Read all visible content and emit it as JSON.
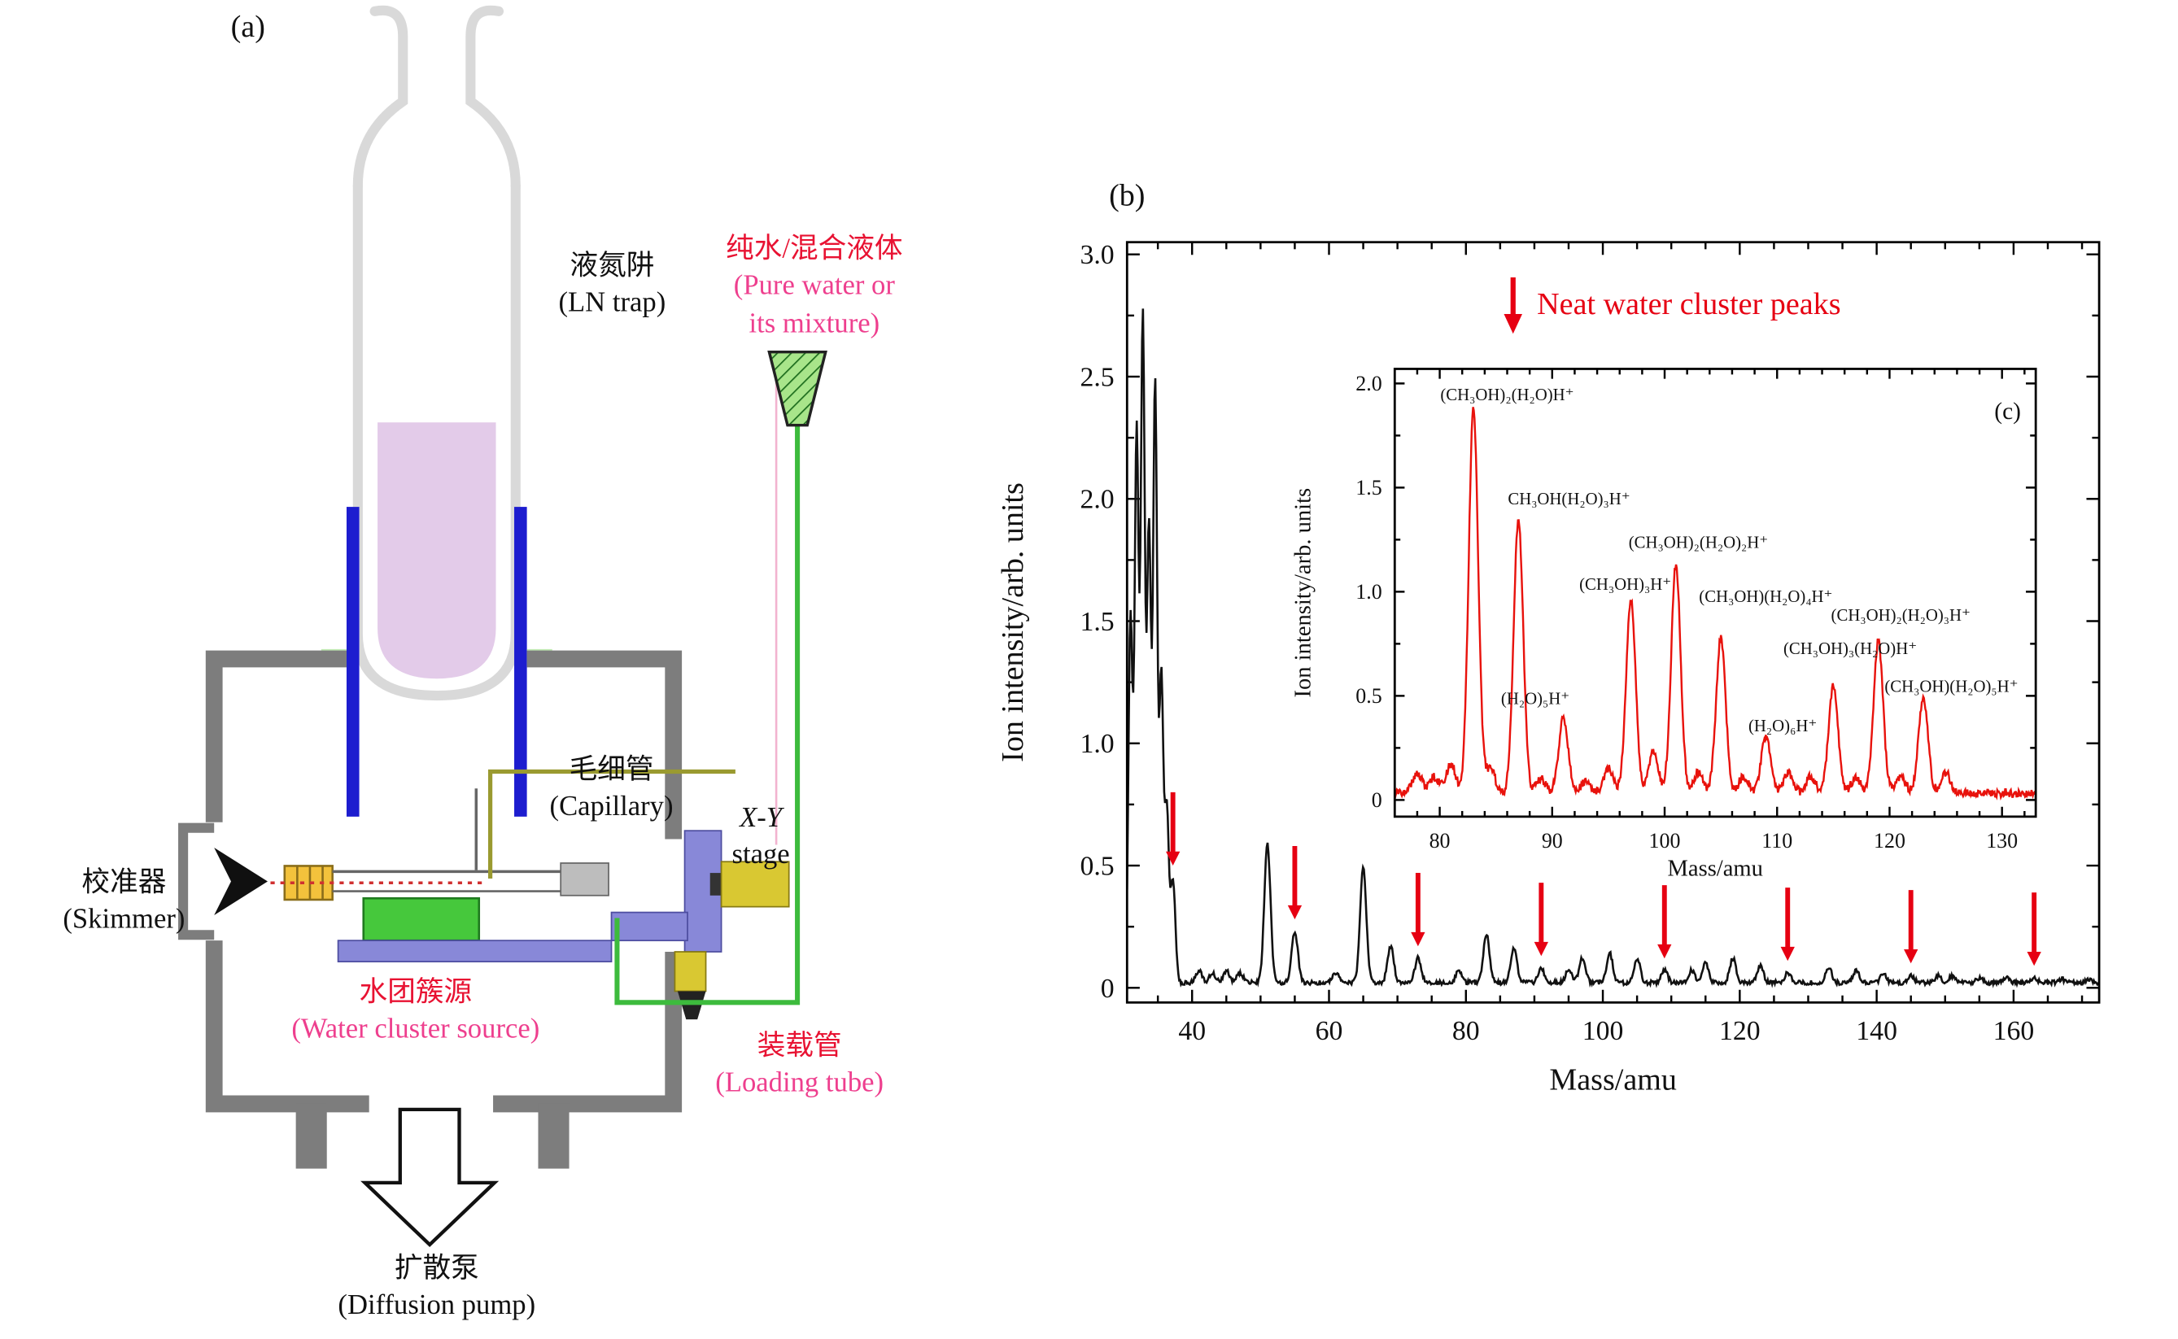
{
  "figure": {
    "panel_a_tag": "(a)",
    "panel_b_tag": "(b)"
  },
  "colors": {
    "label_red": "#e81232",
    "label_pink": "#ee3f8e"
  },
  "panel_a": {
    "ln_trap_zh": "液氮阱",
    "ln_trap_en": "(LN trap)",
    "pure_water_zh": "纯水/混合液体",
    "pure_water_en1": "(Pure water or",
    "pure_water_en2": "its mixture)",
    "capillary_zh": "毛细管",
    "capillary_en": "(Capillary)",
    "xy_stage_line1": "X-Y",
    "xy_stage_line2": "stage",
    "skimmer_zh": "校准器",
    "skimmer_en": "(Skimmer)",
    "water_source_zh": "水团簇源",
    "water_source_en": "(Water cluster source)",
    "loading_tube_zh": "装载管",
    "loading_tube_en": "(Loading tube)",
    "diffusion_pump_zh": "扩散泵",
    "diffusion_pump_en": "(Diffusion pump)"
  },
  "legend": {
    "text": "Neat water cluster peaks",
    "color": "#e60012"
  },
  "chart_data": [
    {
      "id": "main-spectrum",
      "type": "line",
      "title": "",
      "xlabel": "Mass/amu",
      "ylabel": "Ion intensity/arb. units",
      "xlim": [
        30.5,
        172.5
      ],
      "ylim": [
        -0.06,
        3.05
      ],
      "xticks": [
        40,
        60,
        80,
        100,
        120,
        140,
        160
      ],
      "yticks": [
        0,
        0.5,
        1,
        1.5,
        2,
        2.5,
        3
      ],
      "ytick_labels": [
        "0",
        "0.5",
        "1.0",
        "1.5",
        "2.0",
        "2.5",
        "3.0"
      ],
      "line_color": "#111111",
      "peak_sigma": 0.45,
      "noise_base": 0.012,
      "noise_amp": 0.018,
      "peaks": [
        [
          31,
          1.5,
          0.3
        ],
        [
          31.9,
          2.25,
          0.3
        ],
        [
          32.8,
          2.72,
          0.3
        ],
        [
          33.7,
          1.85,
          0.3
        ],
        [
          34.6,
          2.45,
          0.3
        ],
        [
          35.5,
          1.25,
          0.3
        ],
        [
          36.3,
          0.7,
          0.3
        ],
        [
          37.2,
          0.42,
          0.35
        ],
        [
          41,
          0.05
        ],
        [
          43,
          0.04
        ],
        [
          45,
          0.05
        ],
        [
          47,
          0.04
        ],
        [
          51,
          0.57
        ],
        [
          55,
          0.21
        ],
        [
          61,
          0.04
        ],
        [
          65,
          0.47
        ],
        [
          69,
          0.15
        ],
        [
          73,
          0.1
        ],
        [
          79,
          0.05
        ],
        [
          83,
          0.2
        ],
        [
          87,
          0.14
        ],
        [
          91,
          0.06
        ],
        [
          95,
          0.05
        ],
        [
          97,
          0.1
        ],
        [
          101,
          0.12
        ],
        [
          105,
          0.1
        ],
        [
          109,
          0.055
        ],
        [
          113,
          0.05
        ],
        [
          115,
          0.08
        ],
        [
          119,
          0.1
        ],
        [
          123,
          0.07
        ],
        [
          127,
          0.04
        ],
        [
          133,
          0.06
        ],
        [
          137,
          0.05
        ],
        [
          141,
          0.035
        ],
        [
          145,
          0.03
        ],
        [
          149,
          0.03
        ],
        [
          151,
          0.025
        ],
        [
          155,
          0.02
        ],
        [
          159,
          0.02
        ],
        [
          163,
          0.02
        ],
        [
          167,
          0.015
        ],
        [
          171,
          0.012
        ]
      ],
      "arrows": {
        "color": "#e60012",
        "length": 0.3,
        "positions": [
          [
            37.2,
            0.5
          ],
          [
            55,
            0.28
          ],
          [
            73,
            0.17
          ],
          [
            91,
            0.13
          ],
          [
            109,
            0.12
          ],
          [
            127,
            0.11
          ],
          [
            145,
            0.1
          ],
          [
            163,
            0.09
          ]
        ]
      }
    },
    {
      "id": "inset-spectrum",
      "type": "line",
      "panel_tag": {
        "text": "(c)",
        "x": 130.5,
        "y": 1.83
      },
      "xlabel": "Mass/amu",
      "ylabel": "Ion intensity/arb. units",
      "xlim": [
        76,
        133
      ],
      "ylim": [
        -0.08,
        2.07
      ],
      "xticks": [
        80,
        90,
        100,
        110,
        120,
        130
      ],
      "yticks": [
        0,
        0.5,
        1,
        1.5,
        2
      ],
      "ytick_labels": [
        "0",
        "0.5",
        "1.0",
        "1.5",
        "2.0"
      ],
      "line_color": "#e8120c",
      "peak_sigma": 0.42,
      "noise_base": 0.012,
      "noise_amp": 0.04,
      "peaks": [
        [
          78,
          0.1
        ],
        [
          79.5,
          0.08
        ],
        [
          81,
          0.14
        ],
        [
          83,
          1.85
        ],
        [
          84.5,
          0.12
        ],
        [
          87,
          1.32
        ],
        [
          89,
          0.07
        ],
        [
          91,
          0.36
        ],
        [
          93,
          0.06
        ],
        [
          95,
          0.12
        ],
        [
          97,
          0.93
        ],
        [
          99,
          0.2
        ],
        [
          101,
          1.1
        ],
        [
          103,
          0.1
        ],
        [
          105,
          0.75
        ],
        [
          107,
          0.08
        ],
        [
          109,
          0.27
        ],
        [
          111,
          0.1
        ],
        [
          113,
          0.08
        ],
        [
          115,
          0.52
        ],
        [
          117,
          0.07
        ],
        [
          119,
          0.73
        ],
        [
          121,
          0.08
        ],
        [
          123,
          0.45
        ],
        [
          125,
          0.1
        ]
      ],
      "labels": [
        {
          "text": "(CH₃OH)₂(H₂O)H⁺",
          "x": 86,
          "y": 1.92
        },
        {
          "text": "CH₃OH(H₂O)₃H⁺",
          "x": 91.5,
          "y": 1.42
        },
        {
          "text": "(H₂O)₅H⁺",
          "x": 88.5,
          "y": 0.46
        },
        {
          "text": "(CH₃OH)₃H⁺",
          "x": 96.5,
          "y": 1.01
        },
        {
          "text": "(CH₃OH)₂(H₂O)₂H⁺",
          "x": 103,
          "y": 1.21
        },
        {
          "text": "(CH₃OH)(H₂O)₄H⁺",
          "x": 109,
          "y": 0.95
        },
        {
          "text": "(CH₃OH)₂(H₂O)₃H⁺",
          "x": 121,
          "y": 0.86
        },
        {
          "text": "(CH₃OH)₃(H₂O)H⁺",
          "x": 116.5,
          "y": 0.7
        },
        {
          "text": "(H₂O)₆H⁺",
          "x": 110.5,
          "y": 0.33
        },
        {
          "text": "(CH₃OH)(H₂O)₅H⁺",
          "x": 125.5,
          "y": 0.52
        }
      ]
    }
  ]
}
